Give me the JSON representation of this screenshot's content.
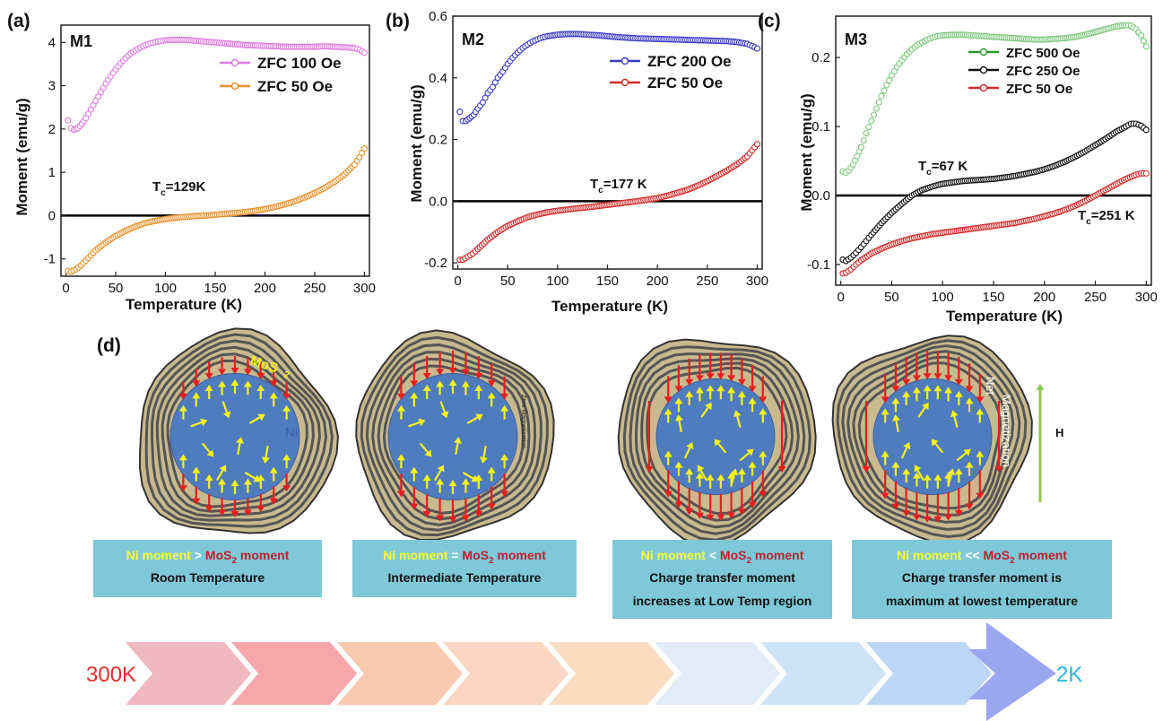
{
  "chart_data": [
    {
      "panel": "(a)",
      "name": "M1",
      "type": "scatter",
      "xlabel": "Temperature (K)",
      "ylabel": "Moment (emu/g)",
      "xlim": [
        -5,
        305
      ],
      "ylim": [
        -1.4,
        4.4
      ],
      "xticks": [
        "0",
        "50",
        "100",
        "150",
        "200",
        "250",
        "300"
      ],
      "yticks": [
        "-1",
        "0",
        "1",
        "2",
        "3",
        "4"
      ],
      "legend": "top-right",
      "series": [
        {
          "name": "ZFC 100 Oe",
          "color": "#e07ce0",
          "x": [
            2,
            5,
            8,
            12,
            16,
            20,
            25,
            30,
            35,
            40,
            45,
            50,
            55,
            60,
            65,
            70,
            75,
            80,
            85,
            90,
            95,
            100,
            110,
            120,
            130,
            140,
            150,
            160,
            170,
            180,
            190,
            200,
            210,
            220,
            230,
            240,
            250,
            260,
            270,
            280,
            290,
            295,
            300
          ],
          "y": [
            2.2,
            2.02,
            1.98,
            2.02,
            2.12,
            2.25,
            2.45,
            2.65,
            2.85,
            3.05,
            3.22,
            3.38,
            3.52,
            3.64,
            3.74,
            3.82,
            3.88,
            3.94,
            3.98,
            4.01,
            4.03,
            4.05,
            4.06,
            4.06,
            4.04,
            4.02,
            4.0,
            3.98,
            3.96,
            3.94,
            3.93,
            3.92,
            3.91,
            3.9,
            3.9,
            3.9,
            3.9,
            3.91,
            3.9,
            3.89,
            3.87,
            3.83,
            3.76
          ]
        },
        {
          "name": "ZFC 50 Oe",
          "color": "#e8902a",
          "x": [
            2,
            5,
            10,
            15,
            20,
            25,
            30,
            40,
            50,
            60,
            70,
            80,
            90,
            100,
            110,
            120,
            130,
            140,
            150,
            160,
            170,
            180,
            190,
            200,
            210,
            220,
            230,
            240,
            250,
            260,
            270,
            280,
            290,
            295,
            300
          ],
          "y": [
            -1.28,
            -1.3,
            -1.24,
            -1.15,
            -1.04,
            -0.92,
            -0.8,
            -0.62,
            -0.47,
            -0.35,
            -0.25,
            -0.17,
            -0.12,
            -0.08,
            -0.05,
            -0.03,
            -0.01,
            0.0,
            0.02,
            0.04,
            0.06,
            0.08,
            0.11,
            0.15,
            0.2,
            0.26,
            0.33,
            0.42,
            0.52,
            0.64,
            0.78,
            0.95,
            1.18,
            1.35,
            1.55
          ]
        }
      ],
      "annotation": {
        "label": "T",
        "sub": "c",
        "value": "=129K"
      }
    },
    {
      "panel": "(b)",
      "name": "M2",
      "type": "scatter",
      "xlabel": "Temperature (K)",
      "ylabel": "Moment (emu/g)",
      "xlim": [
        -5,
        305
      ],
      "ylim": [
        -0.22,
        0.6
      ],
      "xticks": [
        "0",
        "50",
        "100",
        "150",
        "200",
        "250",
        "300"
      ],
      "yticks": [
        "-0.2",
        "0.0",
        "0.2",
        "0.4",
        "0.6"
      ],
      "legend": "top-right",
      "series": [
        {
          "name": "ZFC 200 Oe",
          "color": "#3a3ac8",
          "x": [
            2,
            5,
            8,
            12,
            16,
            20,
            25,
            30,
            35,
            40,
            45,
            50,
            55,
            60,
            65,
            70,
            75,
            80,
            85,
            90,
            100,
            110,
            120,
            130,
            140,
            150,
            160,
            170,
            180,
            190,
            200,
            210,
            220,
            230,
            240,
            250,
            260,
            270,
            280,
            290,
            295,
            300
          ],
          "y": [
            0.29,
            0.26,
            0.26,
            0.27,
            0.28,
            0.3,
            0.32,
            0.35,
            0.37,
            0.4,
            0.42,
            0.445,
            0.465,
            0.482,
            0.497,
            0.508,
            0.518,
            0.525,
            0.531,
            0.535,
            0.54,
            0.542,
            0.542,
            0.54,
            0.538,
            0.535,
            0.532,
            0.53,
            0.528,
            0.527,
            0.526,
            0.525,
            0.524,
            0.523,
            0.522,
            0.521,
            0.52,
            0.519,
            0.516,
            0.51,
            0.503,
            0.495
          ]
        },
        {
          "name": "ZFC 50 Oe",
          "color": "#d42a2a",
          "x": [
            2,
            5,
            10,
            15,
            20,
            30,
            40,
            50,
            60,
            70,
            80,
            90,
            100,
            110,
            120,
            130,
            140,
            150,
            160,
            170,
            180,
            190,
            200,
            210,
            220,
            230,
            240,
            250,
            260,
            270,
            280,
            290,
            295,
            300
          ],
          "y": [
            -0.19,
            -0.19,
            -0.18,
            -0.17,
            -0.155,
            -0.125,
            -0.1,
            -0.08,
            -0.065,
            -0.052,
            -0.043,
            -0.036,
            -0.031,
            -0.027,
            -0.023,
            -0.02,
            -0.016,
            -0.012,
            -0.008,
            -0.004,
            0.0,
            0.005,
            0.01,
            0.018,
            0.027,
            0.037,
            0.05,
            0.065,
            0.082,
            0.1,
            0.12,
            0.145,
            0.165,
            0.185
          ]
        }
      ],
      "annotation": {
        "label": "T",
        "sub": "c",
        "value": "=177 K"
      }
    },
    {
      "panel": "(c)",
      "name": "M3",
      "type": "scatter",
      "xlabel": "Temperature (K)",
      "ylabel": "Moment (emu/g)",
      "xlim": [
        -5,
        305
      ],
      "ylim": [
        -0.13,
        0.26
      ],
      "xticks": [
        "0",
        "50",
        "100",
        "150",
        "200",
        "250",
        "300"
      ],
      "yticks": [
        "-0.1",
        "0.0",
        "0.1",
        "0.2"
      ],
      "legend": "top-right",
      "series": [
        {
          "name": "ZFC 500 Oe",
          "color": "#2a9a2a",
          "marker_color": "#7ec87e",
          "x": [
            2,
            5,
            8,
            12,
            16,
            20,
            25,
            30,
            35,
            40,
            45,
            50,
            55,
            60,
            65,
            70,
            75,
            80,
            85,
            90,
            95,
            100,
            110,
            120,
            130,
            140,
            150,
            160,
            170,
            180,
            190,
            200,
            210,
            220,
            230,
            240,
            250,
            260,
            270,
            280,
            285,
            290,
            295,
            300
          ],
          "y": [
            0.035,
            0.033,
            0.036,
            0.045,
            0.057,
            0.07,
            0.09,
            0.108,
            0.126,
            0.144,
            0.16,
            0.174,
            0.186,
            0.196,
            0.205,
            0.212,
            0.218,
            0.222,
            0.226,
            0.229,
            0.231,
            0.232,
            0.233,
            0.233,
            0.232,
            0.231,
            0.23,
            0.229,
            0.228,
            0.227,
            0.226,
            0.226,
            0.227,
            0.228,
            0.23,
            0.233,
            0.237,
            0.241,
            0.245,
            0.247,
            0.246,
            0.241,
            0.232,
            0.216
          ]
        },
        {
          "name": "ZFC 250 Oe",
          "color": "#111111",
          "x": [
            2,
            5,
            10,
            15,
            20,
            25,
            30,
            40,
            50,
            60,
            70,
            80,
            90,
            100,
            110,
            120,
            130,
            140,
            150,
            160,
            170,
            180,
            190,
            200,
            210,
            220,
            230,
            240,
            250,
            260,
            270,
            280,
            285,
            290,
            295,
            300
          ],
          "y": [
            -0.093,
            -0.095,
            -0.09,
            -0.083,
            -0.075,
            -0.066,
            -0.057,
            -0.04,
            -0.025,
            -0.012,
            0.0,
            0.008,
            0.013,
            0.017,
            0.019,
            0.021,
            0.022,
            0.023,
            0.024,
            0.026,
            0.028,
            0.031,
            0.034,
            0.038,
            0.043,
            0.049,
            0.056,
            0.064,
            0.073,
            0.082,
            0.092,
            0.1,
            0.104,
            0.104,
            0.101,
            0.095
          ]
        },
        {
          "name": "ZFC 50 Oe",
          "color": "#d42a2a",
          "x": [
            2,
            5,
            10,
            15,
            20,
            30,
            40,
            50,
            60,
            70,
            80,
            90,
            100,
            110,
            120,
            130,
            140,
            150,
            160,
            170,
            180,
            190,
            200,
            210,
            220,
            230,
            240,
            250,
            260,
            270,
            280,
            290,
            295,
            300
          ],
          "y": [
            -0.113,
            -0.112,
            -0.107,
            -0.1,
            -0.094,
            -0.084,
            -0.077,
            -0.071,
            -0.066,
            -0.062,
            -0.059,
            -0.056,
            -0.054,
            -0.052,
            -0.05,
            -0.048,
            -0.046,
            -0.044,
            -0.042,
            -0.04,
            -0.037,
            -0.034,
            -0.03,
            -0.026,
            -0.021,
            -0.015,
            -0.008,
            0.0,
            0.008,
            0.016,
            0.024,
            0.03,
            0.032,
            0.032
          ]
        }
      ],
      "annotations": [
        {
          "label": "T",
          "sub": "c",
          "value": "=67 K"
        },
        {
          "label": "T",
          "sub": "c",
          "value": "=251 K"
        }
      ]
    }
  ],
  "diagram": {
    "panel": "(d)",
    "label_mos2": "MoS",
    "label_mos2_sub": "2",
    "label_ni": "Ni",
    "label_zero": "Zero Magnetization",
    "label_net": "Net",
    "label_magnetization": "Magnetization",
    "label_h": "H",
    "colors": {
      "shell": "#c8b98e",
      "core": "#4f7bbf",
      "outline": "#555555",
      "arrow_in": "#f5f516",
      "arrow_out": "#e61e1e",
      "box": "#7ec8d8",
      "h_arrow": "#8cc84a"
    },
    "boxes": [
      {
        "ni": "Ni moment",
        "rel": " > ",
        "mos": "MoS",
        "sub": "2",
        "tail": " moment",
        "line2": "Room Temperature",
        "line3": ""
      },
      {
        "ni": "Ni moment",
        "rel": " = ",
        "mos": "MoS",
        "sub": "2",
        "tail": " moment",
        "line2": "Intermediate Temperature",
        "line3": ""
      },
      {
        "ni": "Ni moment",
        "rel": " < ",
        "mos": "MoS",
        "sub": "2",
        "tail": " moment",
        "line2": "Charge transfer moment",
        "line3": "increases at Low Temp region"
      },
      {
        "ni": "Ni moment",
        "rel": " << ",
        "mos": "MoS",
        "sub": "2",
        "tail": " moment",
        "line2": "Charge transfer moment is",
        "line3": "maximum at lowest temperature"
      }
    ],
    "arrow_bar": {
      "start": "300K",
      "end": "2K"
    }
  }
}
